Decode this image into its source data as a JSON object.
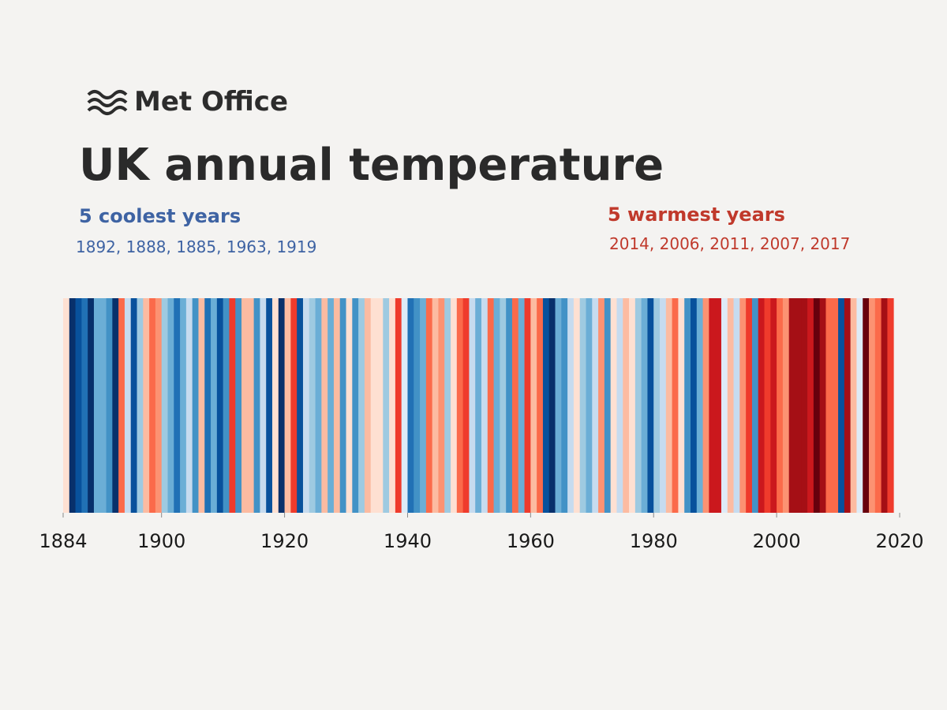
{
  "chart_data": {
    "type": "stripes",
    "brand": "Met Office",
    "title": "UK annual temperature",
    "cool_heading": "5 coolest years",
    "cool_years": "1892, 1888, 1885, 1963, 1919",
    "warm_heading": "5 warmest years",
    "warm_years": "2014, 2006, 2011, 2007, 2017",
    "xlim": [
      1884,
      2020
    ],
    "xticks": [
      1884,
      1900,
      1920,
      1940,
      1960,
      1980,
      2000,
      2020
    ],
    "clim": [
      -1.2,
      1.4
    ],
    "color_scale": [
      "#08306b",
      "#08519c",
      "#2171b5",
      "#4292c6",
      "#6baed6",
      "#9ecae1",
      "#c6dbef",
      "#deebf7",
      "#fee0d2",
      "#fcbba1",
      "#fc9272",
      "#fb6a4a",
      "#ef3b2c",
      "#cb181d",
      "#a50f15",
      "#67000d"
    ],
    "x": [
      1884,
      1885,
      1886,
      1887,
      1888,
      1889,
      1890,
      1891,
      1892,
      1893,
      1894,
      1895,
      1896,
      1897,
      1898,
      1899,
      1900,
      1901,
      1902,
      1903,
      1904,
      1905,
      1906,
      1907,
      1908,
      1909,
      1910,
      1911,
      1912,
      1913,
      1914,
      1915,
      1916,
      1917,
      1918,
      1919,
      1920,
      1921,
      1922,
      1923,
      1924,
      1925,
      1926,
      1927,
      1928,
      1929,
      1930,
      1931,
      1932,
      1933,
      1934,
      1935,
      1936,
      1937,
      1938,
      1939,
      1940,
      1941,
      1942,
      1943,
      1944,
      1945,
      1946,
      1947,
      1948,
      1949,
      1950,
      1951,
      1952,
      1953,
      1954,
      1955,
      1956,
      1957,
      1958,
      1959,
      1960,
      1961,
      1962,
      1963,
      1964,
      1965,
      1966,
      1967,
      1968,
      1969,
      1970,
      1971,
      1972,
      1973,
      1974,
      1975,
      1976,
      1977,
      1978,
      1979,
      1980,
      1981,
      1982,
      1983,
      1984,
      1985,
      1986,
      1987,
      1988,
      1989,
      1990,
      1991,
      1992,
      1993,
      1994,
      1995,
      1996,
      1997,
      1998,
      1999,
      2000,
      2001,
      2002,
      2003,
      2004,
      2005,
      2006,
      2007,
      2008,
      2009,
      2010,
      2011,
      2012,
      2013,
      2014,
      2015,
      2016,
      2017,
      2018
    ],
    "values": [
      0.1,
      -1.1,
      -0.9,
      -0.8,
      -1.2,
      -0.5,
      -0.4,
      -0.6,
      -1.2,
      0.6,
      -0.2,
      -0.9,
      -0.3,
      0.4,
      0.7,
      0.5,
      -0.3,
      -0.4,
      -0.8,
      -0.5,
      -0.2,
      -0.6,
      0.3,
      -0.8,
      -0.4,
      -1.0,
      -0.6,
      0.8,
      -0.7,
      0.3,
      0.4,
      -0.6,
      -0.2,
      -1.0,
      0.1,
      -1.2,
      0.3,
      0.9,
      -1.0,
      -0.2,
      -0.3,
      -0.5,
      0.4,
      -0.4,
      0.3,
      -0.6,
      0.2,
      -0.7,
      -0.3,
      0.4,
      0.1,
      0.2,
      -0.3,
      0.1,
      0.8,
      0.0,
      -0.8,
      -0.6,
      -0.4,
      0.6,
      0.3,
      0.5,
      -0.3,
      0.2,
      0.7,
      0.9,
      -0.1,
      -0.5,
      -0.2,
      0.6,
      -0.4,
      -0.3,
      -0.6,
      0.6,
      -0.4,
      0.9,
      0.3,
      0.6,
      -0.9,
      -1.2,
      -0.4,
      -0.7,
      -0.2,
      0.1,
      -0.3,
      -0.5,
      -0.1,
      0.5,
      -0.6,
      0.2,
      -0.2,
      0.4,
      0.2,
      -0.3,
      -0.4,
      -1.0,
      -0.3,
      -0.2,
      0.4,
      0.6,
      0.1,
      -0.7,
      -0.9,
      -0.5,
      0.5,
      1.0,
      1.0,
      0.0,
      0.4,
      -0.2,
      0.5,
      0.9,
      -0.6,
      1.0,
      0.8,
      1.0,
      0.7,
      0.5,
      1.1,
      1.1,
      1.1,
      1.0,
      1.3,
      1.2,
      0.7,
      0.6,
      -0.9,
      1.2,
      0.4,
      0.0,
      1.4,
      0.5,
      0.7,
      1.1,
      0.9
    ]
  }
}
